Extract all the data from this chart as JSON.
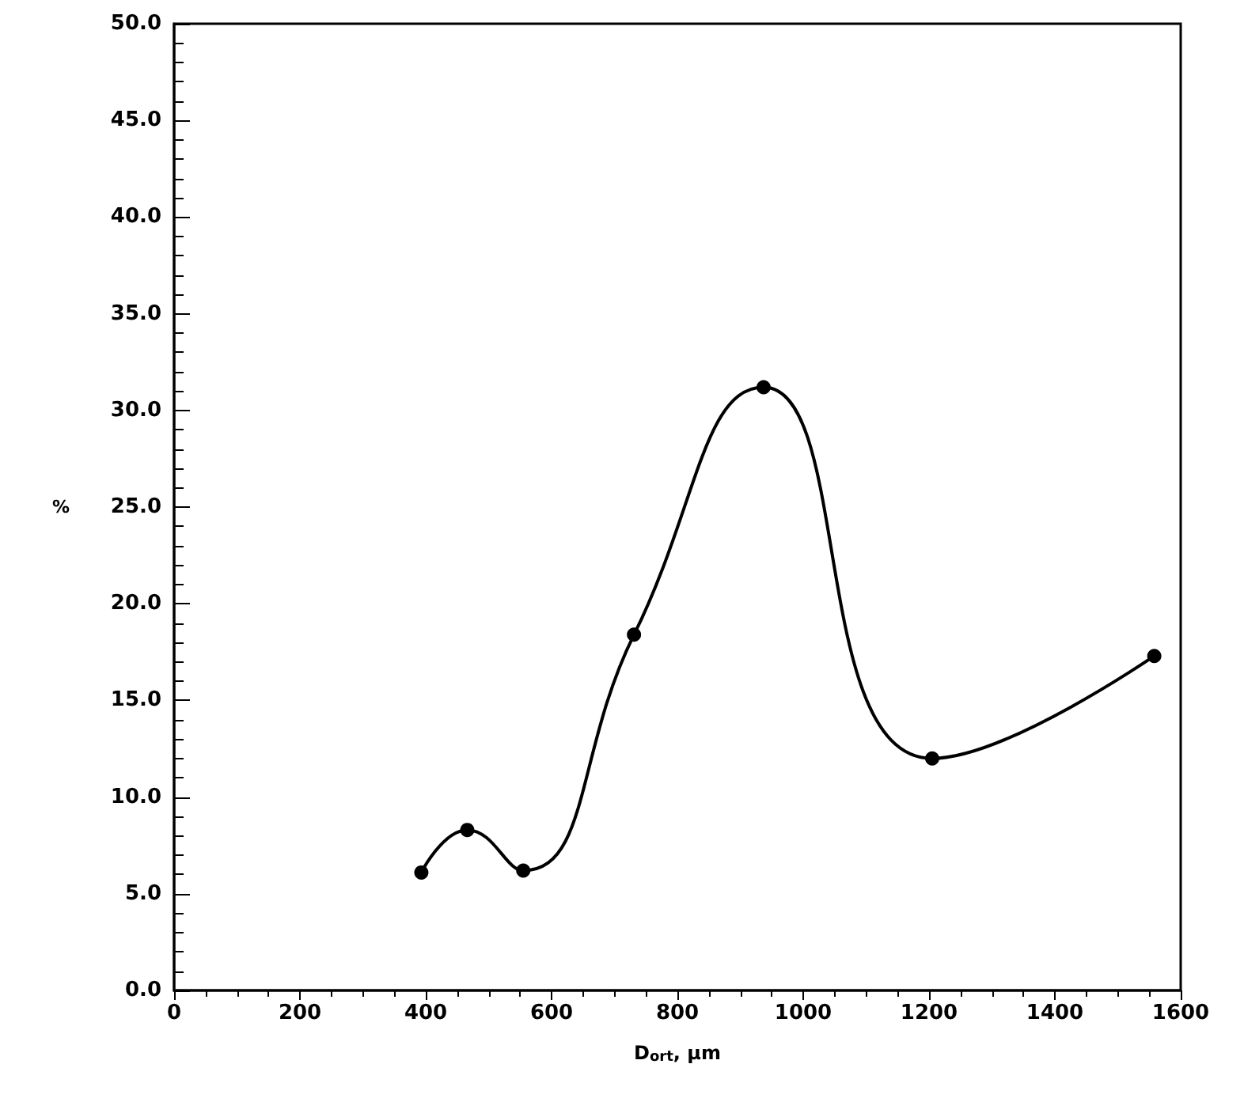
{
  "chart_data": {
    "type": "line",
    "xlabel": "D$_{ort}$, μm",
    "ylabel": "%",
    "x": [
      393,
      466,
      555,
      731,
      937,
      1205,
      1558
    ],
    "values": [
      6.1,
      8.3,
      6.2,
      18.4,
      31.2,
      12.0,
      17.3
    ],
    "color": "#000000",
    "marker": "circle",
    "line_style": "solid",
    "grid": false,
    "xlim": [
      0,
      1600
    ],
    "xticks": [
      0,
      200,
      400,
      600,
      800,
      1000,
      1200,
      1400,
      1600
    ],
    "ylim": [
      0,
      50
    ],
    "yticks": [
      {
        "value": 0,
        "label": "0.0"
      },
      {
        "value": 5,
        "label": "5.0"
      },
      {
        "value": 10,
        "label": "10.0"
      },
      {
        "value": 15,
        "label": "15.0"
      },
      {
        "value": 20,
        "label": "20.0"
      },
      {
        "value": 25,
        "label": "25.0"
      },
      {
        "value": 30,
        "label": "30.0"
      },
      {
        "value": 35,
        "label": "35.0"
      },
      {
        "value": 40,
        "label": "40.0"
      },
      {
        "value": 45,
        "label": "45.0"
      },
      {
        "value": 50,
        "label": "50.0"
      }
    ]
  }
}
